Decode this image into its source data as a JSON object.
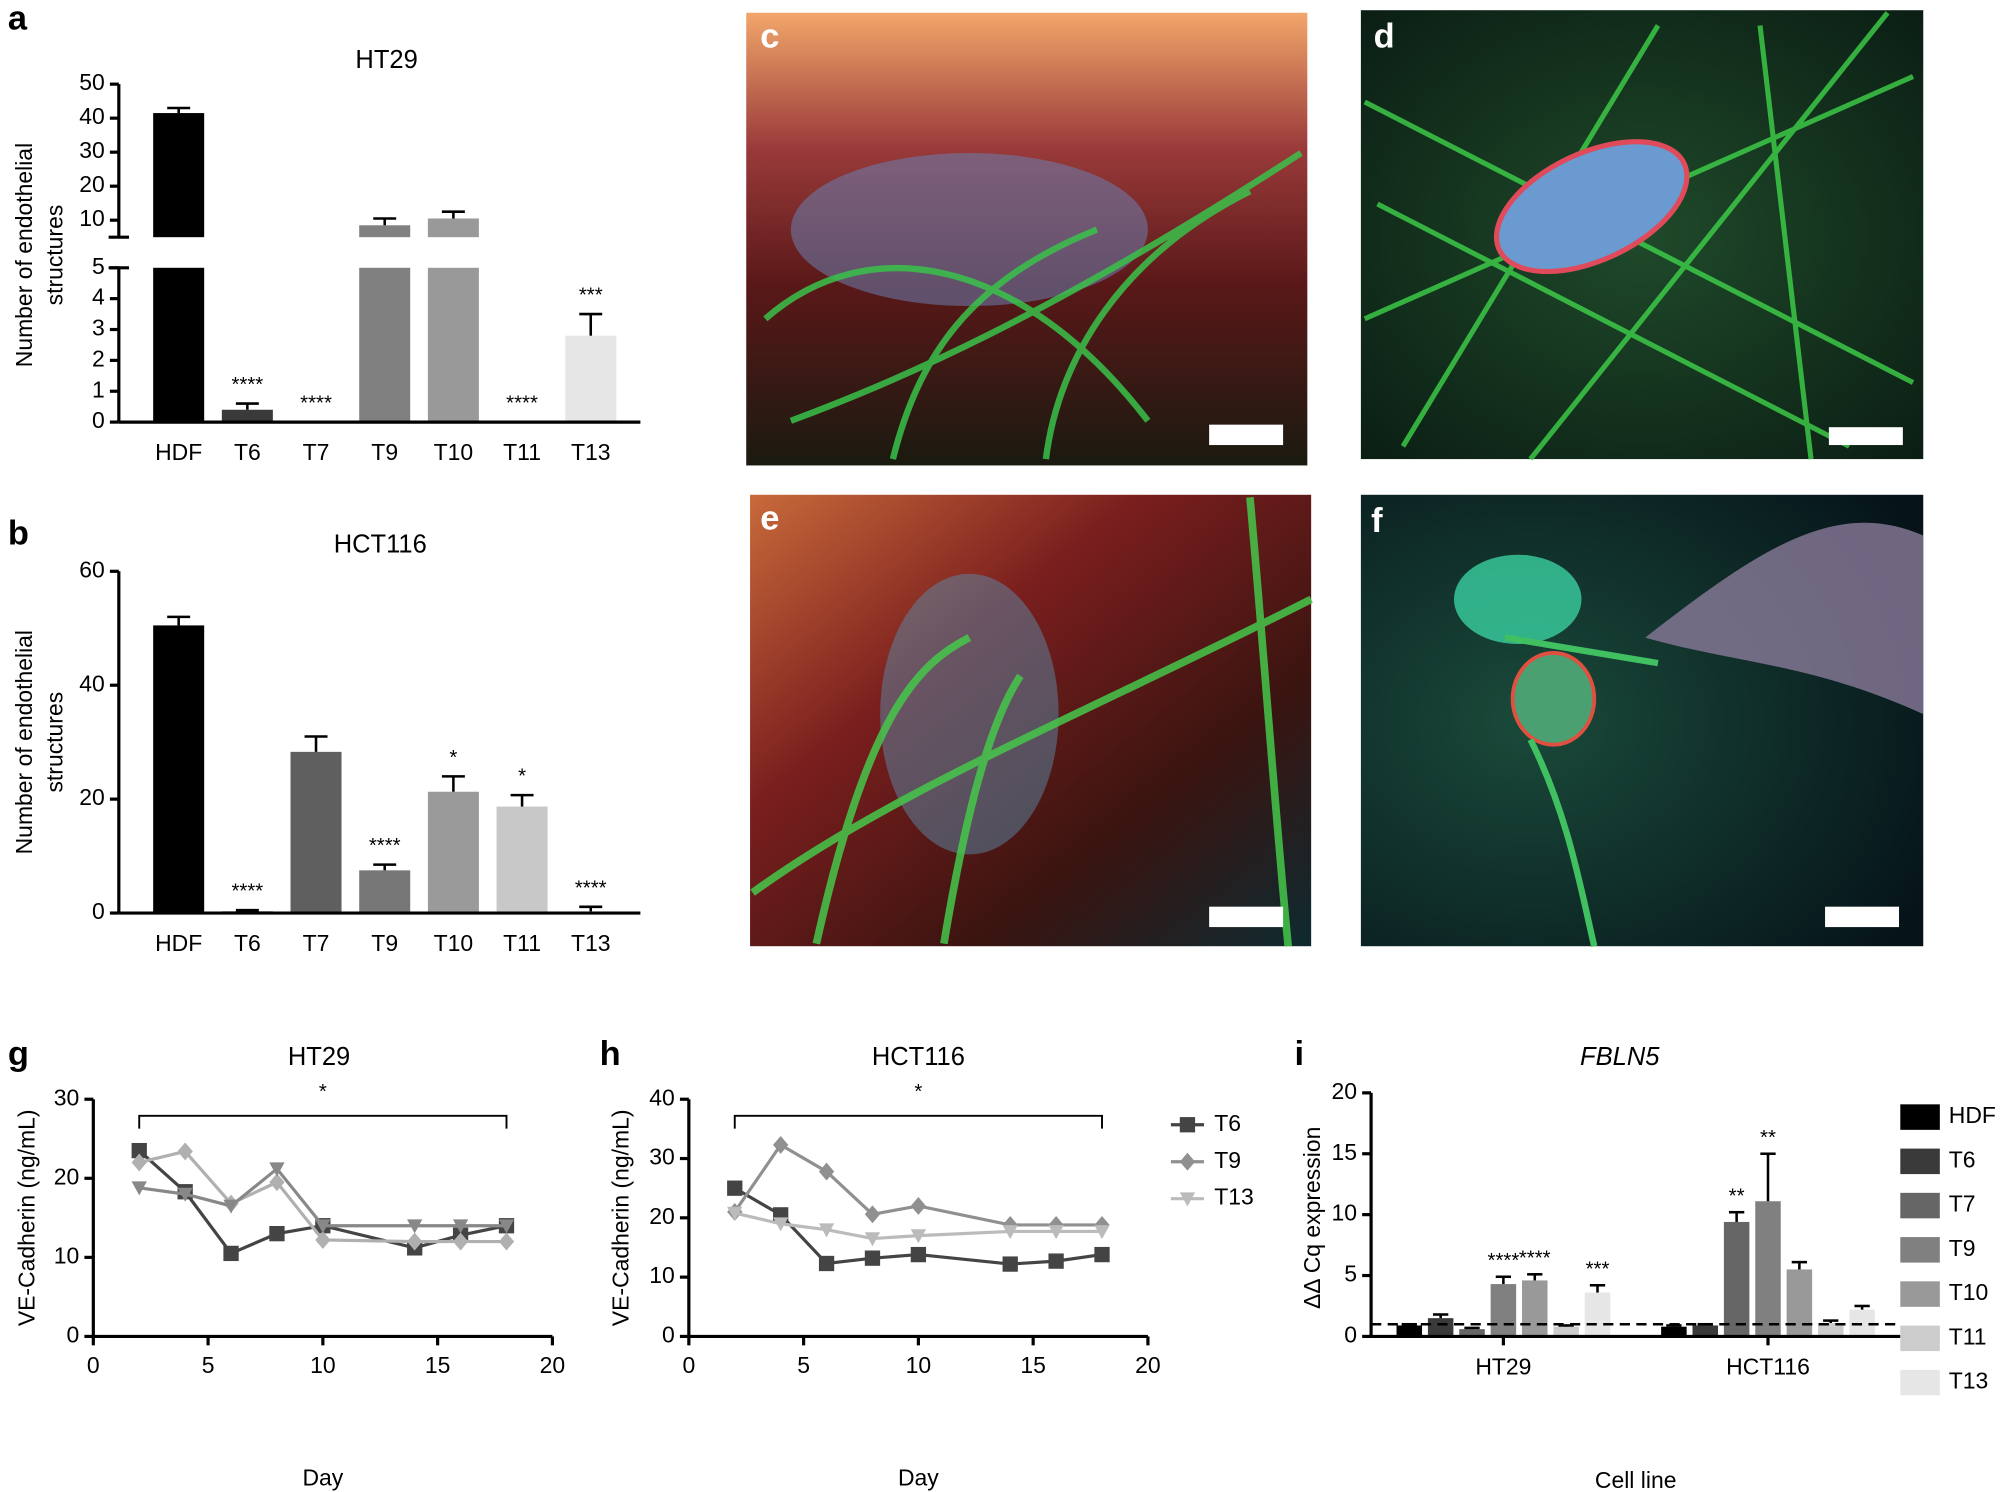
{
  "images": [
    {
      "label": "c"
    },
    {
      "label": "d"
    },
    {
      "label": "e"
    },
    {
      "label": "f"
    }
  ],
  "chart_data": [
    {
      "type": "bar",
      "label": "a",
      "title": "HT29",
      "ylabel": [
        "Number of endothelial",
        "structures"
      ],
      "categories": [
        "HDF",
        "T6",
        "T7",
        "T9",
        "T10",
        "T11",
        "T13"
      ],
      "values": [
        41.5,
        0.4,
        0,
        8.5,
        10.5,
        0,
        2.8
      ],
      "errors": [
        1.5,
        0.2,
        0,
        2,
        2,
        0,
        0.7
      ],
      "significance": [
        null,
        "****",
        "****",
        null,
        null,
        "****",
        "***"
      ],
      "colors": [
        "#000000",
        "#3a3a3a",
        "#555555",
        "#808080",
        "#999999",
        "#cccccc",
        "#e6e6e6"
      ],
      "ylim": [
        0,
        50
      ],
      "ybreak": 5,
      "yticks": [
        0,
        1,
        2,
        3,
        4,
        5,
        10,
        20,
        30,
        40,
        50
      ]
    },
    {
      "type": "bar",
      "label": "b",
      "title": "HCT116",
      "ylabel": [
        "Number of endothelial",
        "structures"
      ],
      "categories": [
        "HDF",
        "T6",
        "T7",
        "T9",
        "T10",
        "T11",
        "T13"
      ],
      "values": [
        50.5,
        0.3,
        28.3,
        7.5,
        21.3,
        18.7,
        0.3
      ],
      "errors": [
        1.5,
        0.2,
        2.7,
        1,
        2.7,
        2,
        0.8
      ],
      "significance": [
        null,
        "****",
        null,
        "****",
        "*",
        "*",
        "****"
      ],
      "colors": [
        "#000000",
        "#3a3a3a",
        "#5f5f5f",
        "#777777",
        "#9a9a9a",
        "#c8c8c8",
        "#e6e6e6"
      ],
      "ylim": [
        0,
        60
      ],
      "yticks": [
        0,
        20,
        40,
        60
      ]
    },
    {
      "type": "line",
      "label": "g",
      "title": "HT29",
      "xlabel": "Day",
      "ylabel": [
        "VE-Cadherin (ng/mL)"
      ],
      "significance": "*",
      "x": [
        2,
        4,
        6,
        8,
        10,
        14,
        16,
        18
      ],
      "series": [
        {
          "name": "T6",
          "color": "#444444",
          "marker": "square",
          "values": [
            23.5,
            18.3,
            10.5,
            13,
            14,
            11.2,
            12.8,
            14
          ]
        },
        {
          "name": "T9",
          "color": "#b0b0b0",
          "marker": "diamond",
          "values": [
            22,
            23.4,
            16.8,
            19.5,
            12.2,
            12,
            12,
            12
          ]
        },
        {
          "name": "T13",
          "color": "#888888",
          "marker": "triangle",
          "values": [
            18.8,
            18,
            16.5,
            21.2,
            14,
            14,
            14,
            14
          ]
        }
      ],
      "xlim": [
        0,
        20
      ],
      "xticks": [
        0,
        5,
        10,
        15,
        20
      ],
      "ylim": [
        0,
        30
      ],
      "yticks": [
        0,
        10,
        20,
        30
      ]
    },
    {
      "type": "line",
      "label": "h",
      "title": "HCT116",
      "xlabel": "Day",
      "ylabel": [
        "VE-Cadherin (ng/mL)"
      ],
      "significance": "*",
      "x": [
        2,
        4,
        6,
        8,
        10,
        14,
        16,
        18
      ],
      "series": [
        {
          "name": "T6",
          "color": "#444444",
          "marker": "square",
          "values": [
            25,
            20.5,
            12.3,
            13.2,
            13.8,
            12.2,
            12.7,
            13.8
          ]
        },
        {
          "name": "T9",
          "color": "#909090",
          "marker": "diamond",
          "values": [
            21,
            32.3,
            27.8,
            20.6,
            22,
            18.8,
            18.8,
            18.8
          ]
        },
        {
          "name": "T13",
          "color": "#bbbbbb",
          "marker": "triangle",
          "values": [
            20.8,
            19,
            18,
            16.5,
            17,
            17.7,
            17.7,
            17.7
          ]
        }
      ],
      "xlim": [
        0,
        20
      ],
      "xticks": [
        0,
        5,
        10,
        15,
        20
      ],
      "ylim": [
        0,
        40
      ],
      "yticks": [
        0,
        10,
        20,
        30,
        40
      ]
    },
    {
      "type": "grouped_bar",
      "label": "i",
      "title": "FBLN5",
      "xlabel": "Cell line",
      "ylabel": [
        "ΔΔ Cq expression"
      ],
      "categories": [
        "HT29",
        "HCT116"
      ],
      "refline": 1,
      "series": [
        {
          "name": "HDF",
          "color": "#000000",
          "values": [
            0.9,
            0.8
          ],
          "errors": [
            0.1,
            0.1
          ],
          "significance": [
            null,
            null
          ]
        },
        {
          "name": "T6",
          "color": "#3a3a3a",
          "values": [
            1.5,
            0.9
          ],
          "errors": [
            0.3,
            0.1
          ],
          "significance": [
            null,
            null
          ]
        },
        {
          "name": "T7",
          "color": "#666666",
          "values": [
            0.6,
            9.4
          ],
          "errors": [
            0.1,
            0.8
          ],
          "significance": [
            null,
            "**"
          ]
        },
        {
          "name": "T9",
          "color": "#808080",
          "values": [
            4.3,
            11.1
          ],
          "errors": [
            0.6,
            3.9
          ],
          "significance": [
            "****",
            "**"
          ]
        },
        {
          "name": "T10",
          "color": "#999999",
          "values": [
            4.6,
            5.5
          ],
          "errors": [
            0.5,
            0.6
          ],
          "significance": [
            "****",
            null
          ]
        },
        {
          "name": "T11",
          "color": "#cccccc",
          "values": [
            0.8,
            1.1
          ],
          "errors": [
            0.1,
            0.2
          ],
          "significance": [
            null,
            null
          ]
        },
        {
          "name": "T13",
          "color": "#e6e6e6",
          "values": [
            3.6,
            2.2
          ],
          "errors": [
            0.6,
            0.3
          ],
          "significance": [
            "***",
            null
          ]
        }
      ],
      "ylim": [
        0,
        20
      ],
      "yticks": [
        0,
        5,
        10,
        15,
        20
      ]
    }
  ]
}
